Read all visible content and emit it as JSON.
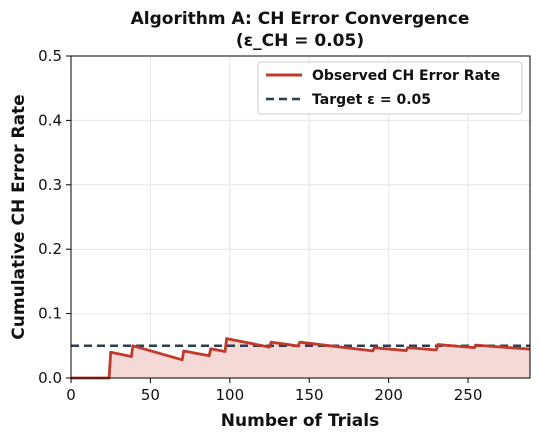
{
  "chart_data": {
    "type": "line",
    "title": "Algorithm A: CH Error Convergence",
    "subtitle": "(ε_CH = 0.05)",
    "xlabel": "Number of Trials",
    "ylabel": "Cumulative CH Error Rate",
    "xlim": [
      0,
      289
    ],
    "ylim": [
      0,
      0.5
    ],
    "xticks": [
      "0",
      "50",
      "100",
      "150",
      "200",
      "250"
    ],
    "yticks": [
      "0.0",
      "0.1",
      "0.2",
      "0.3",
      "0.4",
      "0.5"
    ],
    "grid": true,
    "legend_position": "top-right",
    "colors": {
      "observed": "#c0392b",
      "fill": "#f5d9d7",
      "target": "#2c3e50"
    },
    "series": [
      {
        "name": "Observed CH Error Rate",
        "style": "solid",
        "x": [
          0,
          24,
          25,
          38,
          39,
          70,
          71,
          87,
          88,
          97,
          98,
          125,
          126,
          143,
          144,
          190,
          191,
          211,
          212,
          230,
          231,
          254,
          255,
          289
        ],
        "y": [
          0,
          0,
          0.04,
          0.0333,
          0.05,
          0.0282,
          0.042,
          0.0345,
          0.0455,
          0.0412,
          0.0612,
          0.048,
          0.0556,
          0.0497,
          0.0556,
          0.0421,
          0.047,
          0.0426,
          0.0472,
          0.0435,
          0.0519,
          0.0472,
          0.051,
          0.0448
        ]
      },
      {
        "name": "Target ε = 0.05",
        "style": "dashed",
        "x": [
          0,
          289
        ],
        "y": [
          0.05,
          0.05
        ]
      }
    ]
  }
}
